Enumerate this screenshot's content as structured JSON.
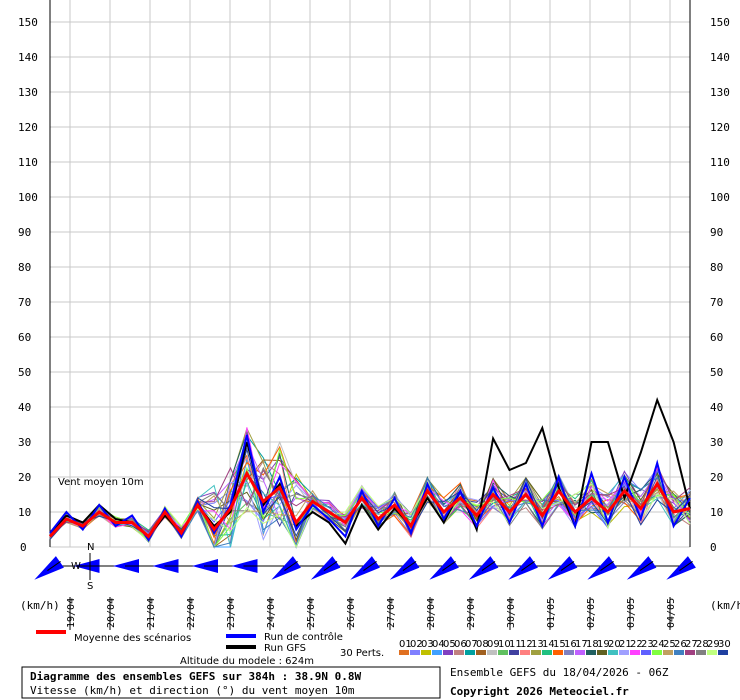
{
  "chart_data": {
    "type": "line",
    "y_axis": {
      "min": 0,
      "max": 150,
      "step": 10,
      "unit_left": "(km/h)",
      "unit_right": "(km/h)"
    },
    "x_axis": {
      "date_labels": [
        "19/04",
        "20/04",
        "21/04",
        "22/04",
        "23/04",
        "24/04",
        "25/04",
        "26/04",
        "27/04",
        "28/04",
        "29/04",
        "30/04",
        "01/05",
        "02/05",
        "03/05",
        "04/05"
      ]
    },
    "grid": true,
    "plot_label": "Vent moyen 10m",
    "series": [
      {
        "name": "Moyenne des scénarios",
        "color": "#ff0000",
        "values": [
          3,
          8,
          6,
          10,
          7,
          7,
          3,
          10,
          4,
          12,
          5,
          11,
          21,
          13,
          17,
          7,
          13,
          10,
          7,
          14,
          8,
          12,
          6,
          16,
          10,
          14,
          9,
          15,
          10,
          15,
          9,
          16,
          10,
          14,
          10,
          16,
          11,
          18,
          10,
          11
        ]
      },
      {
        "name": "Run de contrôle",
        "color": "#0000ff",
        "values": [
          4,
          10,
          5,
          12,
          6,
          9,
          2,
          11,
          3,
          13,
          4,
          12,
          32,
          10,
          20,
          5,
          12,
          8,
          3,
          16,
          6,
          14,
          4,
          18,
          8,
          16,
          6,
          17,
          7,
          18,
          6,
          20,
          6,
          21,
          7,
          20,
          8,
          24,
          6,
          14
        ]
      },
      {
        "name": "Run GFS",
        "color": "#000000",
        "values": [
          4,
          9,
          7,
          12,
          8,
          7,
          3,
          9,
          4,
          12,
          6,
          10,
          30,
          12,
          18,
          6,
          10,
          7,
          1,
          12,
          5,
          11,
          6,
          14,
          7,
          16,
          5,
          31,
          22,
          24,
          34,
          17,
          6,
          30,
          30,
          14,
          27,
          42,
          30,
          11
        ]
      }
    ],
    "perturbations": {
      "label": "30 Perts.",
      "labels": [
        "01",
        "02",
        "03",
        "04",
        "05",
        "06",
        "07",
        "08",
        "09",
        "10",
        "11",
        "12",
        "13",
        "14",
        "15",
        "16",
        "17",
        "18",
        "19",
        "20",
        "21",
        "22",
        "23",
        "24",
        "25",
        "26",
        "27",
        "28",
        "29",
        "30"
      ],
      "colors": [
        "#e07020",
        "#8080ff",
        "#c0c000",
        "#40a0ff",
        "#8040c0",
        "#c08080",
        "#00a0a0",
        "#a06020",
        "#c0c0c0",
        "#60c060",
        "#4040a0",
        "#ff8080",
        "#a0a040",
        "#20c080",
        "#ff6000",
        "#8080c0",
        "#c060ff",
        "#206060",
        "#606020",
        "#40c0c0",
        "#a0a0ff",
        "#ff40ff",
        "#6060ff",
        "#80ff40",
        "#c0a060",
        "#4080c0",
        "#a04080",
        "#808080",
        "#c0ff80",
        "#2040a0"
      ]
    },
    "wind_arrows_directions": [
      "NE",
      "NE",
      "E",
      "E",
      "E",
      "E",
      "E",
      "E",
      "E",
      "E",
      "E",
      "NE",
      "NE",
      "NE",
      "NE",
      "NE",
      "NE",
      "NE",
      "NE",
      "NE",
      "NE",
      "NE",
      "NE",
      "NE",
      "NE",
      "NE",
      "NE",
      "NE",
      "NE",
      "NE",
      "NE",
      "NE",
      "NE",
      "NE",
      "NE",
      "NE",
      "NE",
      "NE",
      "NE",
      "NE"
    ]
  },
  "compass": {
    "n": "N",
    "w": "W",
    "s": "S"
  },
  "legend": {
    "mean": "Moyenne des scénarios",
    "control": "Run de contrôle",
    "gfs": "Run GFS",
    "perts": "30 Perts."
  },
  "footer": {
    "altitude": "Altitude du modele : 624m",
    "title": "Diagramme des ensembles GEFS sur 384h : 38.9N 0.8W",
    "subtitle": "Vitesse (km/h) et direction (°) du vent moyen 10m",
    "run": "Ensemble GEFS du 18/04/2026 - 06Z",
    "copyright": "Copyright 2026 Meteociel.fr"
  }
}
